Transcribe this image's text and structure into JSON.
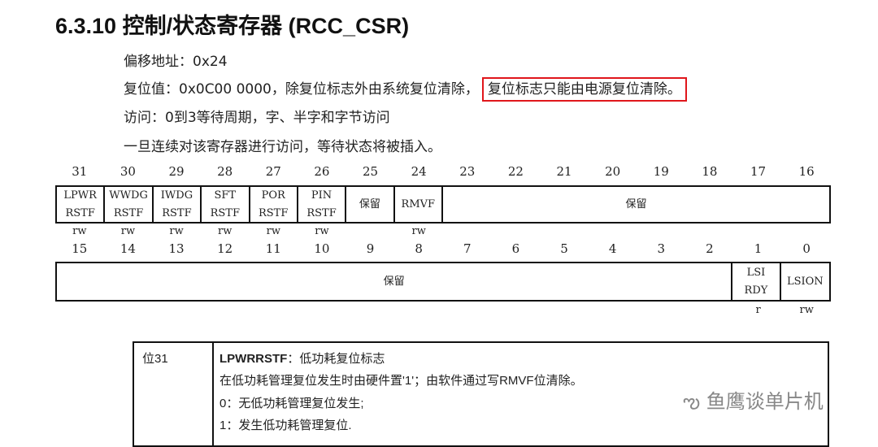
{
  "title": "6.3.10  控制/状态寄存器 (RCC_CSR)",
  "lines": [
    "偏移地址：0x24",
    "复位值：0x0C00 0000，除复位标志外由系统复位清除，",
    "复位标志只能由电源复位清除。",
    "访问：0到3等待周期，字、半字和字节访问",
    "一旦连续对该寄存器进行访问，等待状态将被插入。"
  ],
  "highlight_color": "#e0161b",
  "upper": {
    "bits": [
      "31",
      "30",
      "29",
      "28",
      "27",
      "26",
      "25",
      "24",
      "23",
      "22",
      "21",
      "20",
      "19",
      "18",
      "17",
      "16"
    ],
    "fields": [
      {
        "label": "LPWR\nRSTF",
        "span": 1,
        "access": "rw"
      },
      {
        "label": "WWDG\nRSTF",
        "span": 1,
        "access": "rw"
      },
      {
        "label": "IWDG\nRSTF",
        "span": 1,
        "access": "rw"
      },
      {
        "label": "SFT\nRSTF",
        "span": 1,
        "access": "rw"
      },
      {
        "label": "POR\nRSTF",
        "span": 1,
        "access": "rw"
      },
      {
        "label": "PIN\nRSTF",
        "span": 1,
        "access": "rw"
      },
      {
        "label": "保留",
        "span": 1,
        "access": ""
      },
      {
        "label": "RMVF",
        "span": 1,
        "access": "rw"
      },
      {
        "label": "保留",
        "span": 8,
        "access": ""
      }
    ]
  },
  "lower": {
    "bits": [
      "15",
      "14",
      "13",
      "12",
      "11",
      "10",
      "9",
      "8",
      "7",
      "6",
      "5",
      "4",
      "3",
      "2",
      "1",
      "0"
    ],
    "fields": [
      {
        "label": "保留",
        "span": 14,
        "access": ""
      },
      {
        "label": "LSI\nRDY",
        "span": 1,
        "access": "r"
      },
      {
        "label": "LSION",
        "span": 1,
        "access": "rw"
      }
    ]
  },
  "desc": {
    "bit": "位31",
    "name": "LPWRRSTF",
    "name_suffix": "：低功耗复位标志",
    "lines": [
      "在低功耗管理复位发生时由硬件置'1'；由软件通过写RMVF位清除。",
      "0：无低功耗管理复位发生;",
      "1：发生低功耗管理复位."
    ]
  },
  "watermark": "鱼鹰谈单片机"
}
